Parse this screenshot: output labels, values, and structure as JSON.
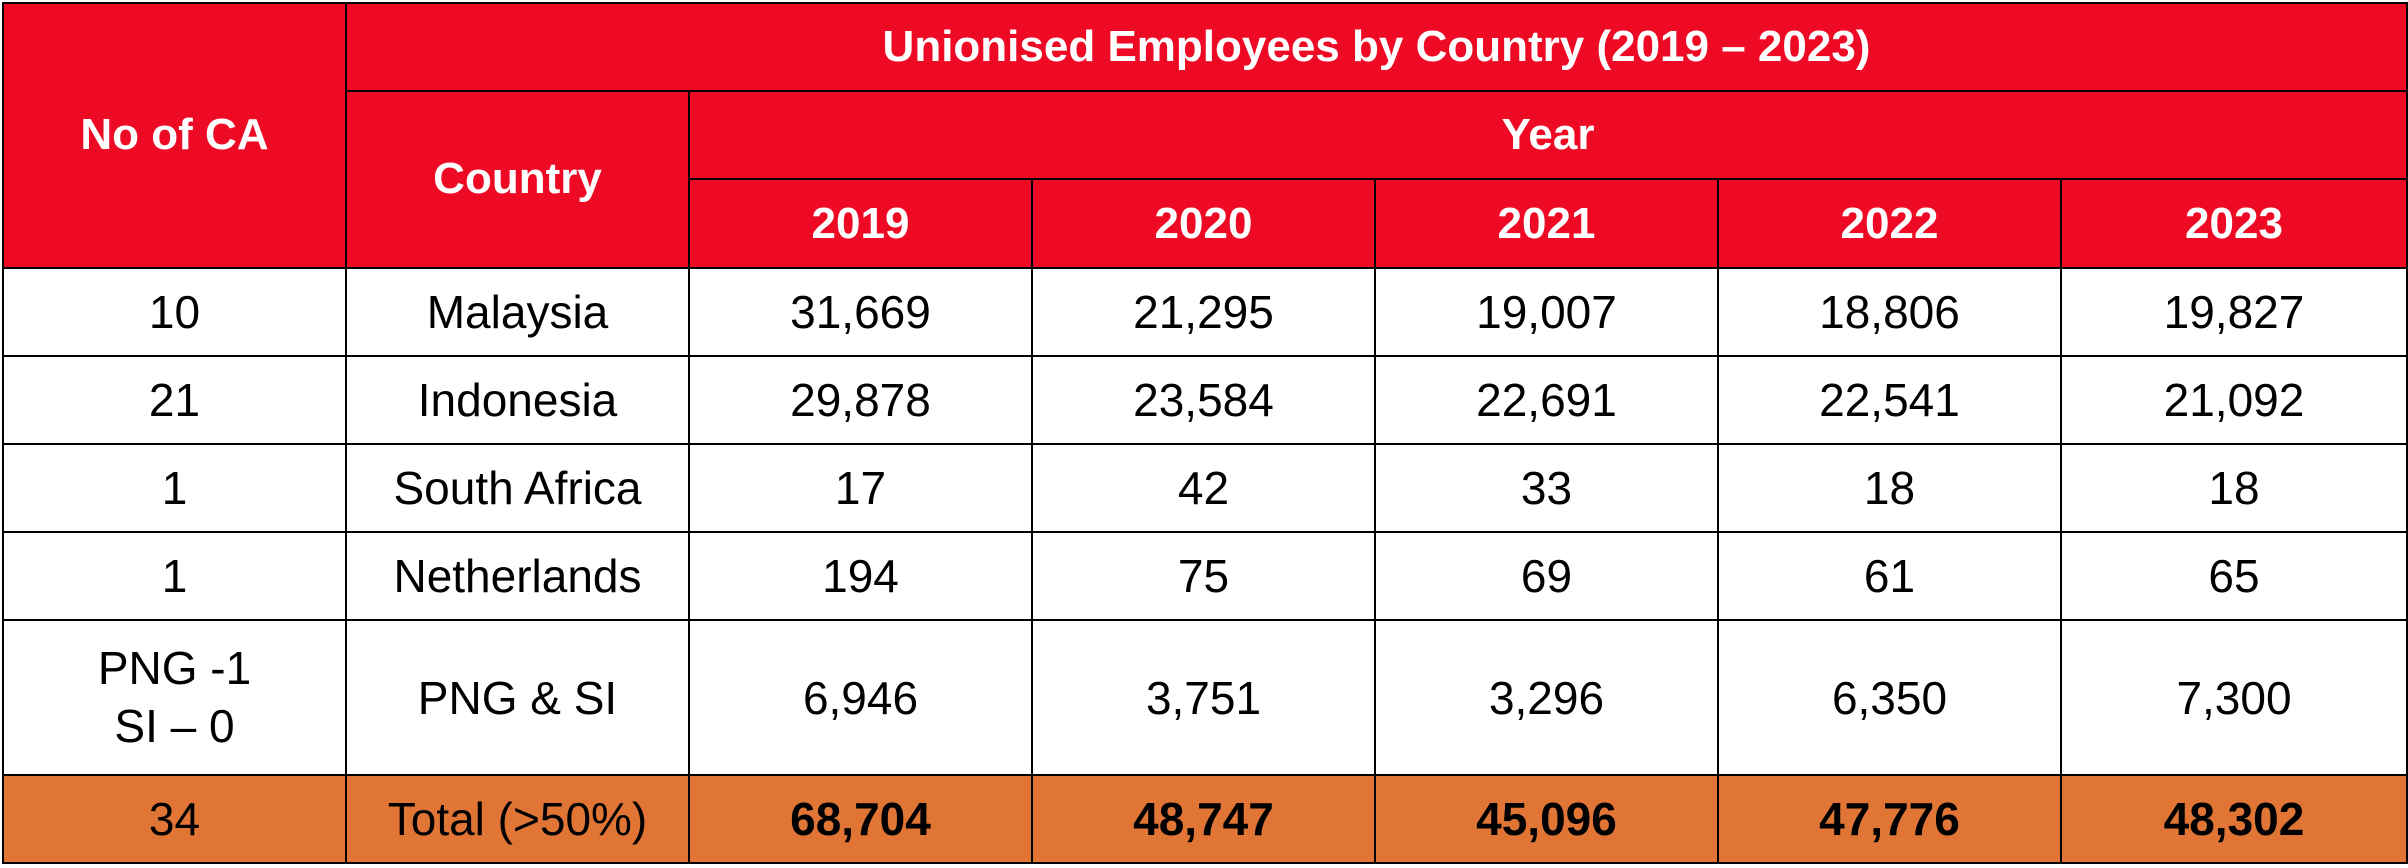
{
  "header": {
    "no_of_ca": "No of CA",
    "title": "Unionised Employees by Country (2019 – 2023)",
    "country": "Country",
    "year": "Year",
    "years": [
      "2019",
      "2020",
      "2021",
      "2022",
      "2023"
    ]
  },
  "rows": [
    {
      "ca": "10",
      "country": "Malaysia",
      "values": [
        "31,669",
        "21,295",
        "19,007",
        "18,806",
        "19,827"
      ]
    },
    {
      "ca": "21",
      "country": "Indonesia",
      "values": [
        "29,878",
        "23,584",
        "22,691",
        "22,541",
        "21,092"
      ]
    },
    {
      "ca": "1",
      "country": "South Africa",
      "values": [
        "17",
        "42",
        "33",
        "18",
        "18"
      ]
    },
    {
      "ca": "1",
      "country": "Netherlands",
      "values": [
        "194",
        "75",
        "69",
        "61",
        "65"
      ]
    },
    {
      "ca_line1": "PNG -1",
      "ca_line2": "SI – 0",
      "country": "PNG & SI",
      "values": [
        "6,946",
        "3,751",
        "3,296",
        "6,350",
        "7,300"
      ]
    }
  ],
  "total": {
    "ca": "34",
    "label": "Total (>50%)",
    "values": [
      "68,704",
      "48,747",
      "45,096",
      "47,776",
      "48,302"
    ]
  },
  "colors": {
    "header_red": "#ee0a24",
    "total_orange": "#e07536"
  }
}
